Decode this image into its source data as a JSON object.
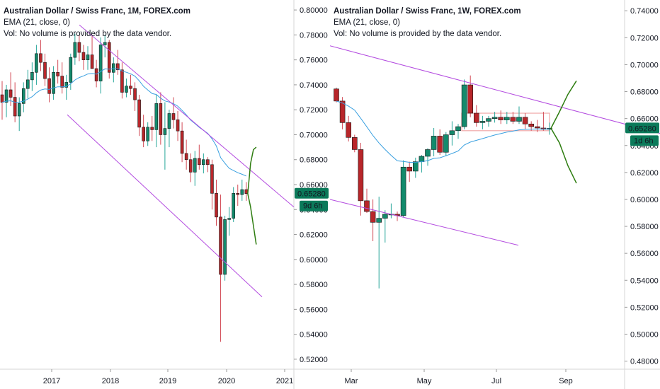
{
  "colors": {
    "up": "#26a69a",
    "up_body": "#138a6c",
    "down": "#b8262a",
    "down_wick": "#d24a55",
    "ema": "#3aa0e0",
    "channel": "#b44de0",
    "projection": "#2e7d10",
    "range_box": "#f0a8a8",
    "price_label": "#0b7a5a",
    "axis_line": "#d6d6d6"
  },
  "charts": [
    {
      "id": "left",
      "symbol_title": "Australian Dollar / Swiss Franc, 1M, FOREX.com",
      "indicator_ema": "EMA (21, close, 0)",
      "indicator_vol": "Vol: No volume is provided by the data vendor.",
      "price_label": "0.65280",
      "countdown_label": "9d 6h"
    },
    {
      "id": "right",
      "symbol_title": "Australian Dollar / Swiss Franc, 1W, FOREX.com",
      "indicator_ema": "EMA (21, close, 0)",
      "indicator_vol": "Vol: No volume is provided by the data vendor.",
      "price_label": "0.65280",
      "countdown_label": "1d 6h"
    }
  ],
  "chart_data": [
    {
      "type": "candlestick",
      "title": "Australian Dollar / Swiss Franc, 1M, FOREX.com",
      "timeframe": "1M",
      "x_ticks": [
        "2017",
        "2018",
        "2019",
        "2020",
        "2021"
      ],
      "y_ticks": [
        "0.80000",
        "0.78000",
        "0.76000",
        "0.74000",
        "0.72000",
        "0.70000",
        "0.68000",
        "0.66000",
        "0.64000",
        "0.62000",
        "0.60000",
        "0.58000",
        "0.56000",
        "0.54000",
        "0.52000"
      ],
      "ylim": [
        0.512,
        0.808
      ],
      "last_price": 0.6528,
      "candles_ohlc": [
        [
          0.732,
          0.743,
          0.712,
          0.726
        ],
        [
          0.726,
          0.74,
          0.714,
          0.736
        ],
        [
          0.736,
          0.75,
          0.723,
          0.73
        ],
        [
          0.73,
          0.742,
          0.71,
          0.715
        ],
        [
          0.715,
          0.73,
          0.703,
          0.725
        ],
        [
          0.725,
          0.742,
          0.718,
          0.737
        ],
        [
          0.737,
          0.752,
          0.729,
          0.744
        ],
        [
          0.744,
          0.758,
          0.735,
          0.75
        ],
        [
          0.75,
          0.772,
          0.74,
          0.765
        ],
        [
          0.765,
          0.776,
          0.751,
          0.758
        ],
        [
          0.758,
          0.765,
          0.739,
          0.745
        ],
        [
          0.745,
          0.754,
          0.726,
          0.733
        ],
        [
          0.733,
          0.755,
          0.728,
          0.75
        ],
        [
          0.75,
          0.76,
          0.741,
          0.747
        ],
        [
          0.747,
          0.758,
          0.733,
          0.738
        ],
        [
          0.738,
          0.748,
          0.728,
          0.742
        ],
        [
          0.742,
          0.765,
          0.736,
          0.762
        ],
        [
          0.762,
          0.781,
          0.756,
          0.774
        ],
        [
          0.774,
          0.78,
          0.759,
          0.766
        ],
        [
          0.766,
          0.772,
          0.752,
          0.76
        ],
        [
          0.76,
          0.771,
          0.752,
          0.764
        ],
        [
          0.764,
          0.779,
          0.757,
          0.753
        ],
        [
          0.753,
          0.76,
          0.738,
          0.743
        ],
        [
          0.743,
          0.778,
          0.733,
          0.772
        ],
        [
          0.772,
          0.78,
          0.762,
          0.774
        ],
        [
          0.774,
          0.776,
          0.745,
          0.75
        ],
        [
          0.75,
          0.762,
          0.742,
          0.757
        ],
        [
          0.757,
          0.768,
          0.748,
          0.752
        ],
        [
          0.752,
          0.758,
          0.729,
          0.734
        ],
        [
          0.734,
          0.745,
          0.73,
          0.739
        ],
        [
          0.739,
          0.748,
          0.732,
          0.737
        ],
        [
          0.737,
          0.742,
          0.719,
          0.728
        ],
        [
          0.728,
          0.732,
          0.699,
          0.706
        ],
        [
          0.706,
          0.716,
          0.69,
          0.695
        ],
        [
          0.695,
          0.71,
          0.691,
          0.706
        ],
        [
          0.706,
          0.715,
          0.695,
          0.704
        ],
        [
          0.704,
          0.732,
          0.69,
          0.725
        ],
        [
          0.725,
          0.734,
          0.692,
          0.7
        ],
        [
          0.7,
          0.726,
          0.672,
          0.705
        ],
        [
          0.705,
          0.72,
          0.69,
          0.717
        ],
        [
          0.717,
          0.73,
          0.705,
          0.712
        ],
        [
          0.712,
          0.719,
          0.695,
          0.703
        ],
        [
          0.703,
          0.71,
          0.678,
          0.685
        ],
        [
          0.685,
          0.696,
          0.672,
          0.68
        ],
        [
          0.68,
          0.685,
          0.662,
          0.67
        ],
        [
          0.67,
          0.687,
          0.659,
          0.681
        ],
        [
          0.681,
          0.692,
          0.672,
          0.676
        ],
        [
          0.676,
          0.685,
          0.669,
          0.68
        ],
        [
          0.68,
          0.682,
          0.67,
          0.676
        ],
        [
          0.676,
          0.68,
          0.64,
          0.653
        ],
        [
          0.653,
          0.664,
          0.627,
          0.634
        ],
        [
          0.634,
          0.652,
          0.534,
          0.588
        ],
        [
          0.588,
          0.635,
          0.583,
          0.632
        ],
        [
          0.632,
          0.642,
          0.619,
          0.633
        ],
        [
          0.633,
          0.658,
          0.63,
          0.653
        ],
        [
          0.653,
          0.66,
          0.643,
          0.652
        ],
        [
          0.652,
          0.664,
          0.647,
          0.656
        ],
        [
          0.656,
          0.662,
          0.647,
          0.6528
        ]
      ],
      "ema_21": "exponential moving average of closes (computed)",
      "channel_upper": [
        [
          "2016-09",
          0.788
        ],
        [
          "2020-11",
          0.642
        ]
      ],
      "channel_lower": [
        [
          "2017-04",
          0.716
        ],
        [
          "2020-09",
          0.57
        ]
      ],
      "projection_up": [
        0.6528,
        0.677,
        0.688,
        0.69
      ],
      "projection_down": [
        0.6528,
        0.642,
        0.627,
        0.612
      ]
    },
    {
      "type": "candlestick",
      "title": "Australian Dollar / Swiss Franc, 1W, FOREX.com",
      "timeframe": "1W",
      "x_ticks": [
        "Mar",
        "May",
        "Jul",
        "Sep"
      ],
      "y_ticks": [
        "0.74000",
        "0.72000",
        "0.70000",
        "0.68000",
        "0.66000",
        "0.64000",
        "0.62000",
        "0.60000",
        "0.58000",
        "0.56000",
        "0.54000",
        "0.52000",
        "0.50000",
        "0.48000"
      ],
      "ylim": [
        0.474,
        0.748
      ],
      "last_price": 0.6528,
      "candles_ohlc": [
        [
          0.682,
          0.683,
          0.672,
          0.673
        ],
        [
          0.673,
          0.676,
          0.652,
          0.657
        ],
        [
          0.657,
          0.662,
          0.643,
          0.646
        ],
        [
          0.646,
          0.648,
          0.635,
          0.637
        ],
        [
          0.637,
          0.642,
          0.588,
          0.599
        ],
        [
          0.599,
          0.608,
          0.59,
          0.591
        ],
        [
          0.591,
          0.6,
          0.569,
          0.583
        ],
        [
          0.583,
          0.602,
          0.534,
          0.586
        ],
        [
          0.586,
          0.592,
          0.568,
          0.589
        ],
        [
          0.589,
          0.597,
          0.586,
          0.589
        ],
        [
          0.589,
          0.591,
          0.584,
          0.588
        ],
        [
          0.588,
          0.629,
          0.587,
          0.624
        ],
        [
          0.624,
          0.628,
          0.613,
          0.621
        ],
        [
          0.621,
          0.631,
          0.616,
          0.628
        ],
        [
          0.628,
          0.633,
          0.62,
          0.632
        ],
        [
          0.632,
          0.638,
          0.625,
          0.637
        ],
        [
          0.637,
          0.653,
          0.632,
          0.647
        ],
        [
          0.647,
          0.652,
          0.633,
          0.635
        ],
        [
          0.635,
          0.65,
          0.632,
          0.648
        ],
        [
          0.648,
          0.658,
          0.64,
          0.651
        ],
        [
          0.651,
          0.656,
          0.645,
          0.654
        ],
        [
          0.654,
          0.689,
          0.652,
          0.685
        ],
        [
          0.685,
          0.692,
          0.661,
          0.664
        ],
        [
          0.664,
          0.67,
          0.654,
          0.657
        ],
        [
          0.657,
          0.662,
          0.652,
          0.658
        ],
        [
          0.658,
          0.662,
          0.654,
          0.66
        ],
        [
          0.66,
          0.665,
          0.657,
          0.661
        ],
        [
          0.661,
          0.666,
          0.656,
          0.659
        ],
        [
          0.659,
          0.665,
          0.656,
          0.661
        ],
        [
          0.661,
          0.665,
          0.656,
          0.658
        ],
        [
          0.658,
          0.669,
          0.656,
          0.661
        ],
        [
          0.661,
          0.664,
          0.652,
          0.656
        ],
        [
          0.656,
          0.658,
          0.651,
          0.654
        ],
        [
          0.654,
          0.659,
          0.65,
          0.653
        ],
        [
          0.653,
          0.665,
          0.651,
          0.652
        ],
        [
          0.652,
          0.657,
          0.648,
          0.6528
        ]
      ],
      "ema_21": "exponential moving average of closes (computed)",
      "channel_upper": [
        [
          "2020-02",
          0.714
        ],
        [
          "2020-10",
          0.658
        ]
      ],
      "channel_lower": [
        [
          "2020-02",
          0.6
        ],
        [
          "2020-08",
          0.566
        ]
      ],
      "range_box": [
        0.651,
        0.664
      ],
      "projection_up": [
        0.6528,
        0.665,
        0.678,
        0.688
      ],
      "projection_down": [
        0.6528,
        0.642,
        0.625,
        0.612
      ]
    }
  ]
}
